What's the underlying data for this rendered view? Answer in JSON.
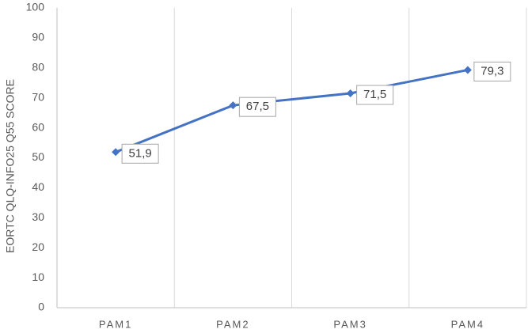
{
  "chart_data": {
    "type": "line",
    "y_label": "EORTC QLQ-INFO25 Q55 SCORE",
    "categories": [
      "PAM1",
      "PAM2",
      "PAM3",
      "PAM4"
    ],
    "series": [
      {
        "color": "#4472c4",
        "values": [
          51.9,
          67.5,
          71.5,
          79.3
        ],
        "value_labels": [
          "51,9",
          "67,5",
          "71,5",
          "79,3"
        ]
      }
    ],
    "ylim": [
      0,
      100
    ],
    "yticks": [
      0,
      10,
      20,
      30,
      40,
      50,
      60,
      70,
      80,
      90,
      100
    ],
    "grid": true
  }
}
